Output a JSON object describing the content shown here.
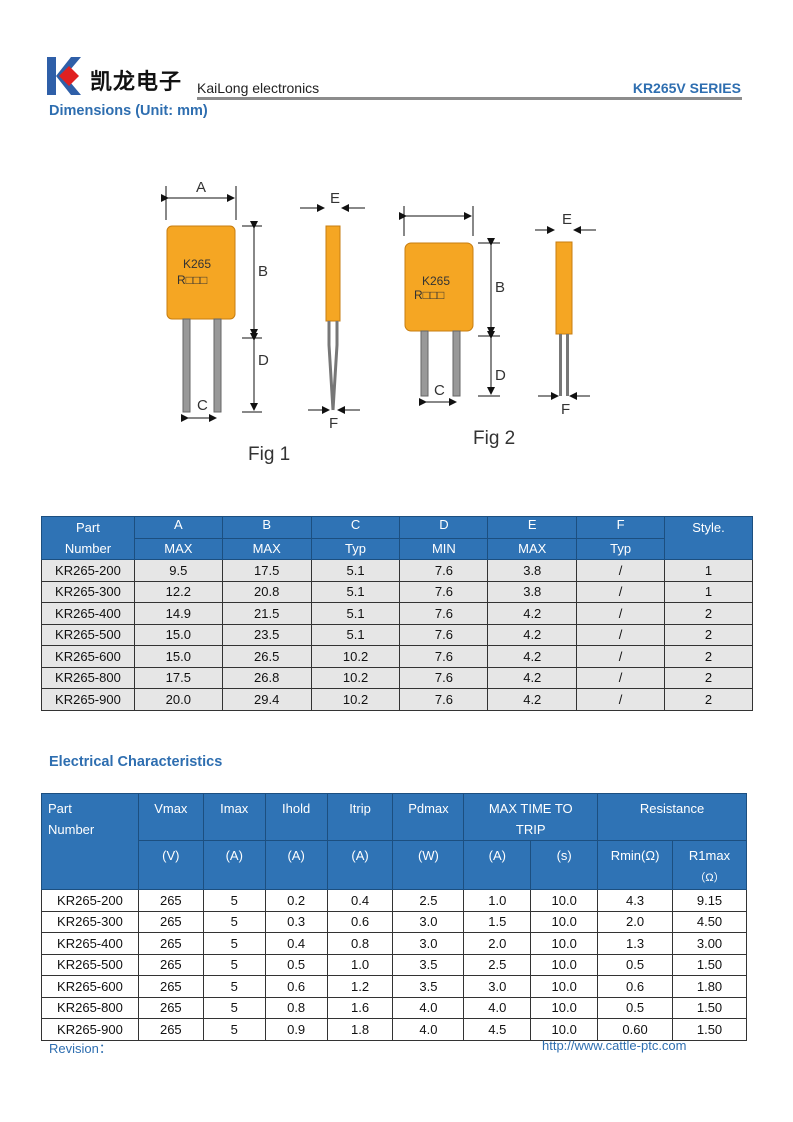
{
  "header": {
    "logo_text": "凯龙电子",
    "company_en": "KaiLong electronics",
    "series": "KR265V SERIES"
  },
  "dimensions": {
    "title": "Dimensions (Unit: mm)",
    "figures": {
      "fig1_label": "Fig 1",
      "fig2_label": "Fig 2",
      "marking_line1": "K265",
      "marking_line2": "R□□□",
      "dim_labels": [
        "A",
        "B",
        "C",
        "D",
        "E",
        "F"
      ]
    },
    "table": {
      "header_row1": [
        "Part",
        "A",
        "B",
        "C",
        "D",
        "E",
        "F",
        "Style."
      ],
      "part_sub": "Number",
      "header_row2": [
        "MAX",
        "MAX",
        "Typ",
        "MIN",
        "MAX",
        "Typ"
      ],
      "rows": [
        [
          "KR265-200",
          "9.5",
          "17.5",
          "5.1",
          "7.6",
          "3.8",
          "/",
          "1"
        ],
        [
          "KR265-300",
          "12.2",
          "20.8",
          "5.1",
          "7.6",
          "3.8",
          "/",
          "1"
        ],
        [
          "KR265-400",
          "14.9",
          "21.5",
          "5.1",
          "7.6",
          "4.2",
          "/",
          "2"
        ],
        [
          "KR265-500",
          "15.0",
          "23.5",
          "5.1",
          "7.6",
          "4.2",
          "/",
          "2"
        ],
        [
          "KR265-600",
          "15.0",
          "26.5",
          "10.2",
          "7.6",
          "4.2",
          "/",
          "2"
        ],
        [
          "KR265-800",
          "17.5",
          "26.8",
          "10.2",
          "7.6",
          "4.2",
          "/",
          "2"
        ],
        [
          "KR265-900",
          "20.0",
          "29.4",
          "10.2",
          "7.6",
          "4.2",
          "/",
          "2"
        ]
      ]
    }
  },
  "electrical": {
    "title": "Electrical Characteristics",
    "table": {
      "part": "Part",
      "part_sub": "Number",
      "header_row1": [
        "Vmax",
        "Imax",
        "Ihold",
        "Itrip",
        "Pdmax"
      ],
      "time_to_trip": "MAX TIME TO",
      "time_to_trip2": "TRIP",
      "resistance": "Resistance",
      "units": [
        "(V)",
        "(A)",
        "(A)",
        "(A)",
        "(W)",
        "(A)",
        "(s)",
        "Rmin(Ω)"
      ],
      "r1max": "R1max",
      "r1max_unit": "（Ω）",
      "rows": [
        [
          "KR265-200",
          "265",
          "5",
          "0.2",
          "0.4",
          "2.5",
          "1.0",
          "10.0",
          "4.3",
          "9.15"
        ],
        [
          "KR265-300",
          "265",
          "5",
          "0.3",
          "0.6",
          "3.0",
          "1.5",
          "10.0",
          "2.0",
          "4.50"
        ],
        [
          "KR265-400",
          "265",
          "5",
          "0.4",
          "0.8",
          "3.0",
          "2.0",
          "10.0",
          "1.3",
          "3.00"
        ],
        [
          "KR265-500",
          "265",
          "5",
          "0.5",
          "1.0",
          "3.5",
          "2.5",
          "10.0",
          "0.5",
          "1.50"
        ],
        [
          "KR265-600",
          "265",
          "5",
          "0.6",
          "1.2",
          "3.5",
          "3.0",
          "10.0",
          "0.6",
          "1.80"
        ],
        [
          "KR265-800",
          "265",
          "5",
          "0.8",
          "1.6",
          "4.0",
          "4.0",
          "10.0",
          "0.5",
          "1.50"
        ],
        [
          "KR265-900",
          "265",
          "5",
          "0.9",
          "1.8",
          "4.0",
          "4.5",
          "10.0",
          "0.60",
          "1.50"
        ]
      ]
    }
  },
  "footer": {
    "revision": "Revision：",
    "url": "http://www.cattle-ptc.com"
  },
  "colors": {
    "accent": "#2e6eb0",
    "header_fill": "#2f73b5",
    "component": "#f5a623",
    "logo_red": "#e02020"
  }
}
